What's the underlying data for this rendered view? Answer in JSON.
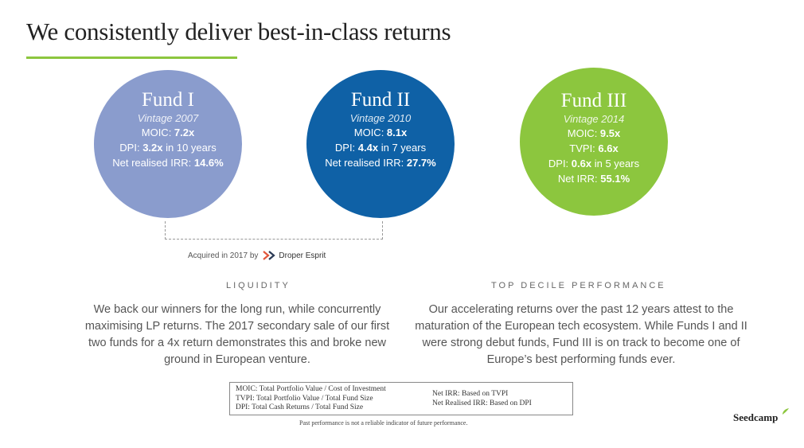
{
  "slide": {
    "title": "We consistently deliver best-in-class returns",
    "funds": [
      {
        "name": "Fund I",
        "vintage": "Vintage 2007",
        "rows": [
          {
            "label": "MOIC: ",
            "value": "7.2x",
            "suffix": ""
          },
          {
            "label": "DPI: ",
            "value": "3.2x",
            "suffix": " in 10 years"
          },
          {
            "label": "Net realised IRR: ",
            "value": "14.6%",
            "suffix": ""
          }
        ],
        "color": "#8a9ccd"
      },
      {
        "name": "Fund II",
        "vintage": "Vintage 2010",
        "rows": [
          {
            "label": "MOIC: ",
            "value": "8.1x",
            "suffix": ""
          },
          {
            "label": "DPI: ",
            "value": "4.4x",
            "suffix": " in 7 years"
          },
          {
            "label": "Net realised IRR: ",
            "value": "27.7%",
            "suffix": ""
          }
        ],
        "color": "#0f61a6"
      },
      {
        "name": "Fund III",
        "vintage": "Vintage 2014",
        "rows": [
          {
            "label": "MOIC: ",
            "value": "9.5x",
            "suffix": ""
          },
          {
            "label": "TVPI: ",
            "value": "6.6x",
            "suffix": ""
          },
          {
            "label": "DPI: ",
            "value": "0.6x",
            "suffix": " in 5 years"
          },
          {
            "label": "Net IRR: ",
            "value": "55.1%",
            "suffix": ""
          }
        ],
        "color": "#8cc63e"
      }
    ],
    "acquired": {
      "text": "Acquired in 2017 by",
      "brand": "Droper Esprit",
      "icon": "droper-esprit-logo-icon"
    },
    "sections": {
      "liquidity": {
        "label": "LIQUIDITY",
        "lines": [
          "We back our winners for the long run, while concurrently",
          "maximising LP returns. The 2017 secondary sale of our first",
          "two funds for a 4x return demonstrates this and broke new",
          "ground in European venture."
        ]
      },
      "top_decile": {
        "label": "TOP DECILE PERFORMANCE",
        "lines": [
          "Our accelerating returns over the past 12 years attest to the",
          "maturation of the European tech ecosystem. While Funds I and II",
          "were strong debut funds, Fund III is on track to become one of",
          "Europe’s best performing funds ever."
        ]
      }
    },
    "definitions": {
      "left": [
        "MOIC: Total Portfolio Value / Cost of Investment",
        "TVPI: Total Portfolio Value / Total Fund Size",
        "DPI: Total Cash Returns / Total Fund Size"
      ],
      "right": [
        "Net IRR: Based on TVPI",
        "Net Realised IRR: Based on DPI"
      ]
    },
    "disclaimer": "Past performance is not a reliable indicator of future performance.",
    "logo": "Seedcamp",
    "accent_color": "#8cc63e"
  }
}
